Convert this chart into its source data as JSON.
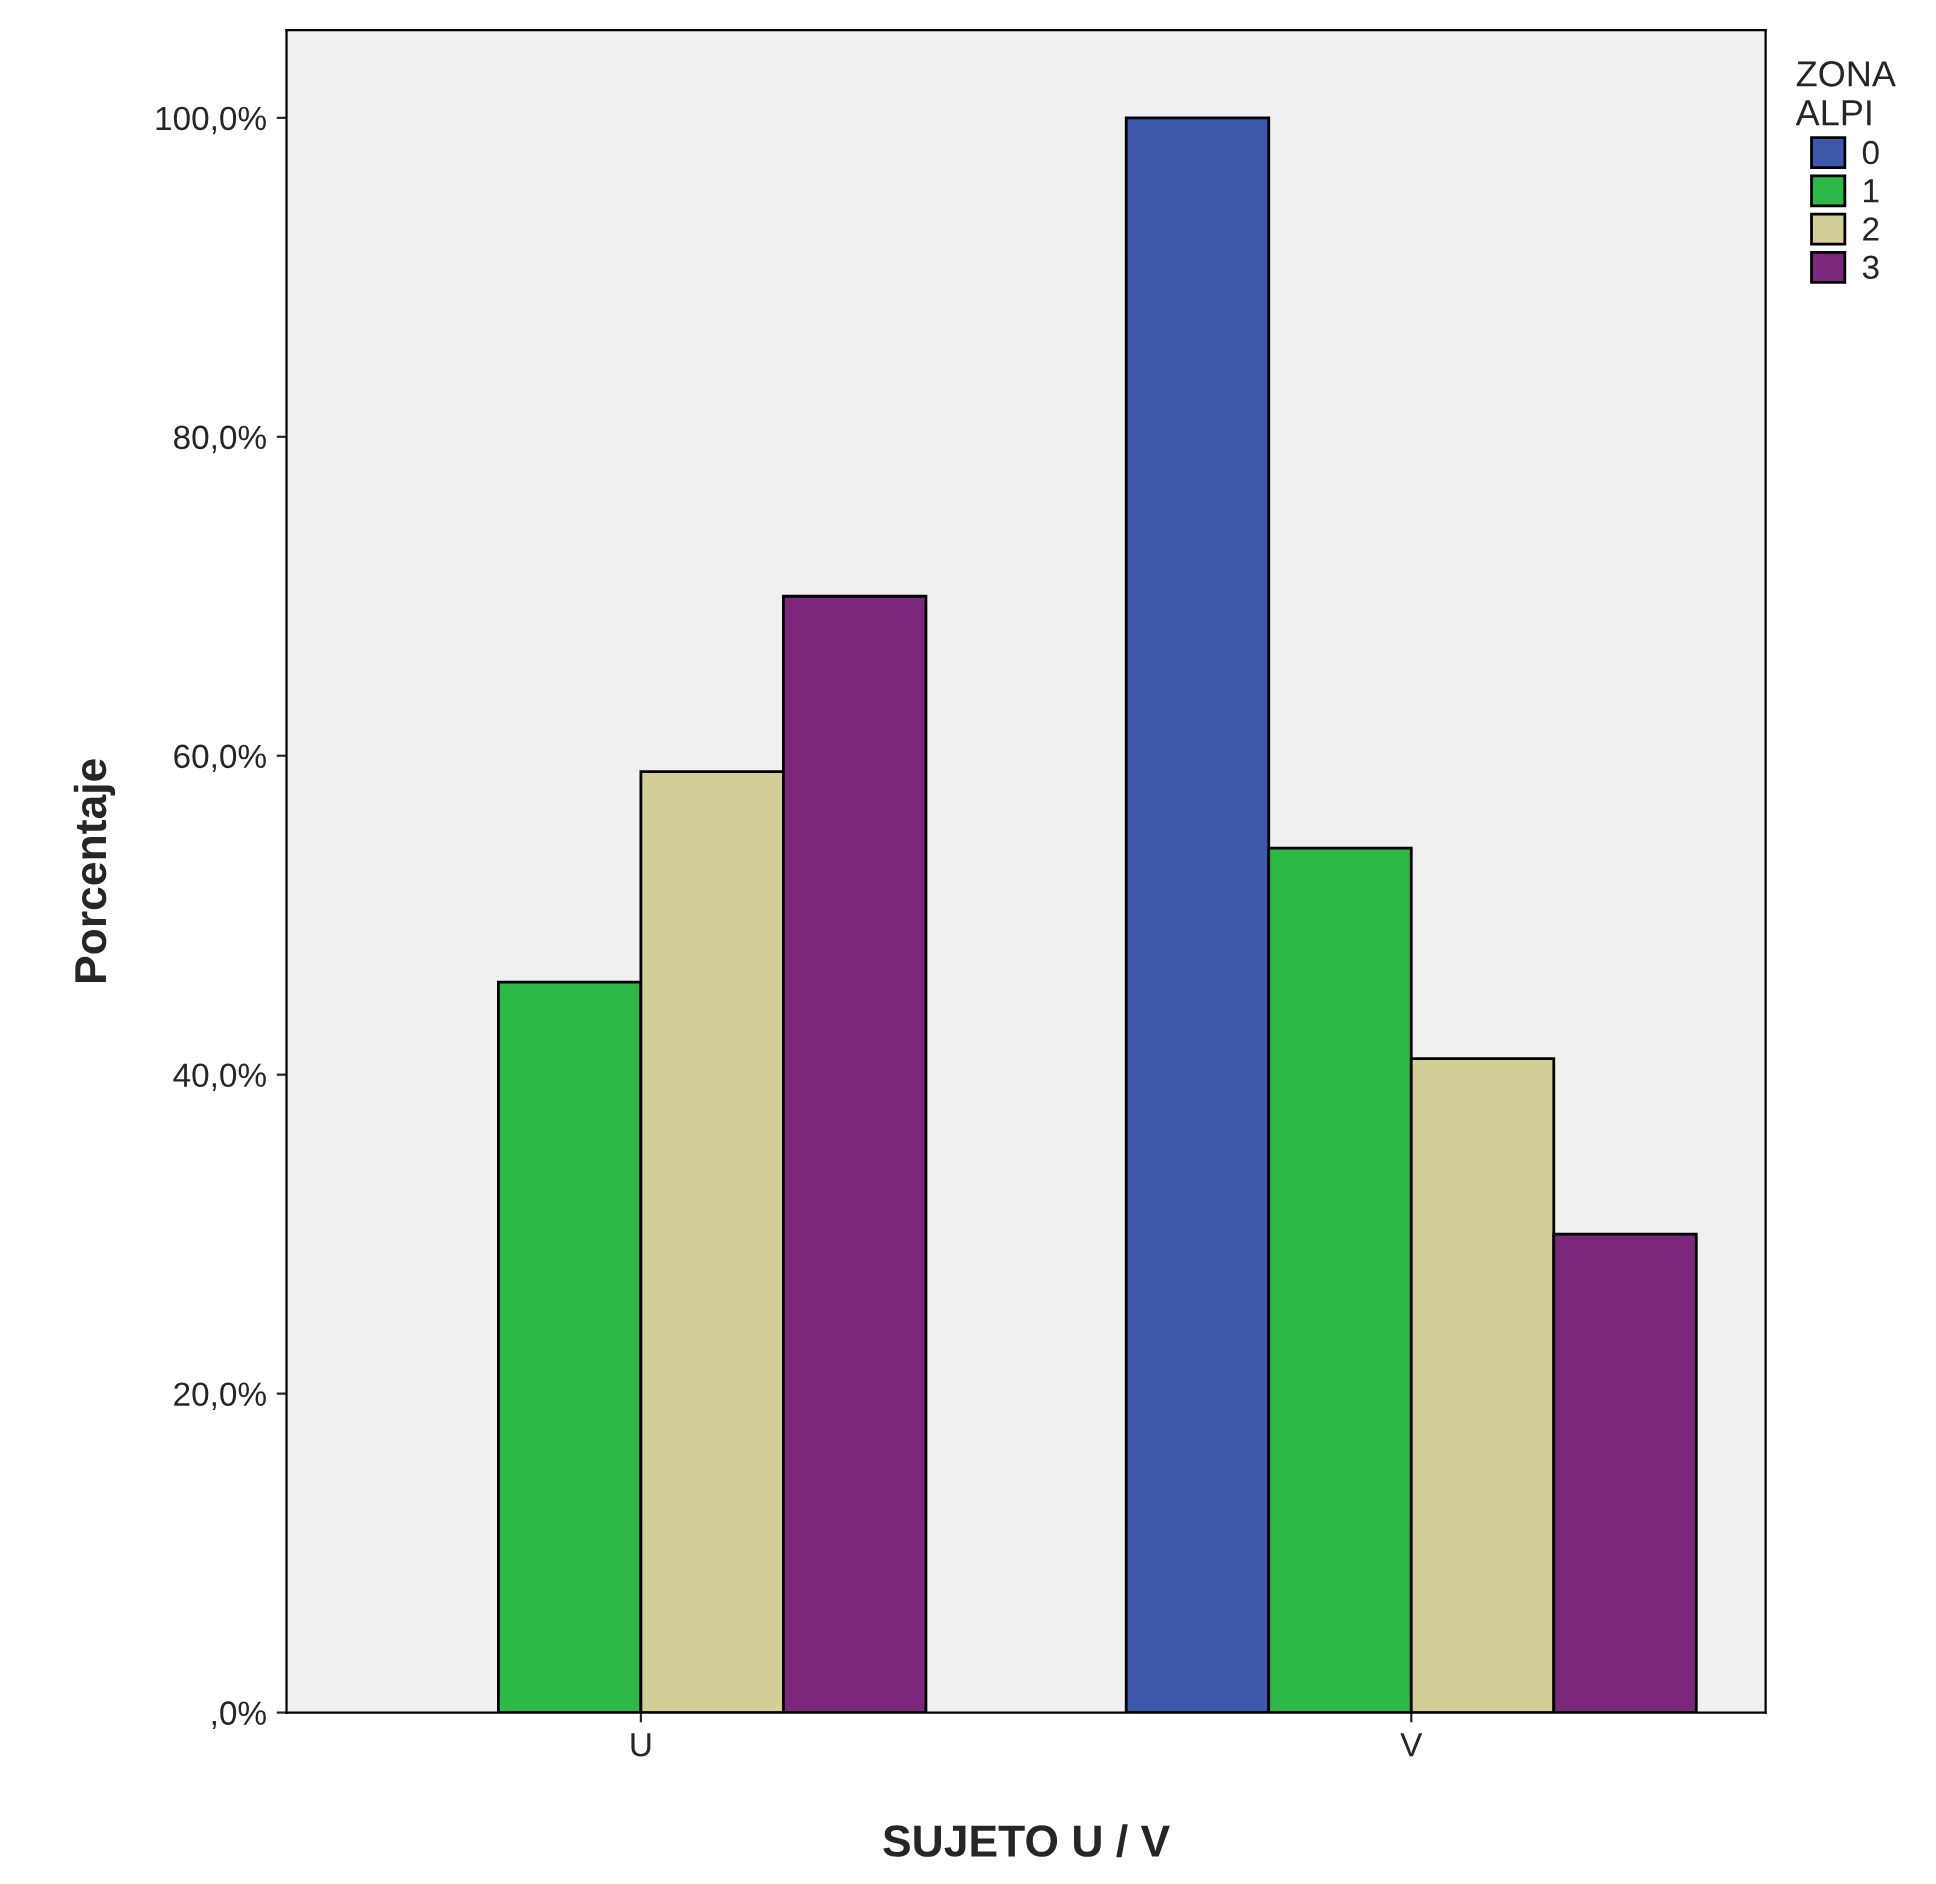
{
  "chart_data": {
    "type": "bar",
    "xlabel": "SUJETO U / V",
    "ylabel": "Porcentaje",
    "legend_title": "ZONA\nALPI",
    "categories": [
      "U",
      "V"
    ],
    "series": [
      {
        "name": "0",
        "color": "#3e58ac",
        "values": [
          null,
          100
        ]
      },
      {
        "name": "1",
        "color": "#2eb848",
        "values": [
          45.8,
          54.2
        ]
      },
      {
        "name": "2",
        "color": "#d3ce97",
        "values": [
          59.0,
          41.0
        ]
      },
      {
        "name": "3",
        "color": "#7b277b",
        "values": [
          70.0,
          30.0
        ]
      }
    ],
    "ylim": [
      0,
      105.5
    ],
    "yticks": [
      {
        "value": 0,
        "label": ",0%"
      },
      {
        "value": 20,
        "label": "20,0%"
      },
      {
        "value": 40,
        "label": "40,0%"
      },
      {
        "value": 60,
        "label": "60,0%"
      },
      {
        "value": 80,
        "label": "80,0%"
      },
      {
        "value": 100,
        "label": "100,0%"
      }
    ],
    "grid": false,
    "legend": "top right"
  }
}
